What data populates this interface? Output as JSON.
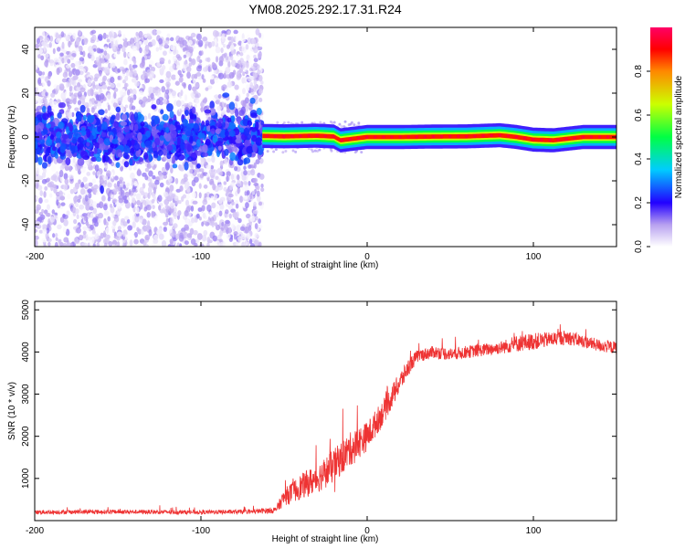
{
  "title": "YM08.2025.292.17.31.R24",
  "chart_data": [
    {
      "type": "heatmap",
      "title": "YM08.2025.292.17.31.R24",
      "xlabel": "Height of straight line (km)",
      "ylabel": "Frequency (Hz)",
      "xlim": [
        -200,
        150
      ],
      "ylim": [
        -50,
        50
      ],
      "x_ticks": [
        -200,
        -100,
        0,
        100
      ],
      "y_ticks": [
        -40,
        -20,
        0,
        20,
        40
      ],
      "x_tick_labels": [
        "-200",
        "-100",
        "0",
        "100"
      ],
      "y_tick_labels": [
        "-40",
        "-20",
        "0",
        "20",
        "40"
      ],
      "colorbar": {
        "label": "Normalized spectral amplitude",
        "range": [
          0,
          1
        ],
        "ticks": [
          0,
          0.2,
          0.4,
          0.6,
          0.8
        ],
        "tick_labels": [
          "0.0",
          "0.2",
          "0.4",
          "0.6",
          "0.8"
        ],
        "colormap": "rainbow"
      },
      "regions": [
        {
          "name": "noise",
          "x_range": [
            -200,
            -63
          ],
          "frequency_spread": [
            -50,
            48
          ],
          "amplitude": [
            0,
            0.3
          ]
        },
        {
          "name": "signal",
          "x_range": [
            -63,
            150
          ],
          "center_frequency": 0,
          "bandwidth": [
            -3,
            3
          ],
          "amplitude": [
            0.6,
            1.0
          ]
        }
      ],
      "signal_band_centers": {
        "x": [
          -63,
          -50,
          -30,
          -20,
          -16,
          0,
          20,
          40,
          60,
          80,
          90,
          100,
          112,
          130,
          150
        ],
        "freq": [
          0.5,
          0.3,
          0.6,
          0.2,
          -1.5,
          0,
          0,
          0.2,
          0.3,
          0.8,
          0,
          -1.2,
          -1.5,
          0,
          0
        ]
      }
    },
    {
      "type": "line",
      "xlabel": "Height of straight line (km)",
      "ylabel": "SNR (10 * v/v)",
      "xlim": [
        -200,
        150
      ],
      "ylim": [
        0,
        5200
      ],
      "x_ticks": [
        -200,
        -100,
        0,
        100
      ],
      "y_ticks": [
        1000,
        2000,
        3000,
        4000,
        5000
      ],
      "x_tick_labels": [
        "-200",
        "-100",
        "0",
        "100"
      ],
      "y_tick_labels": [
        "1000",
        "2000",
        "3000",
        "4000",
        "5000"
      ],
      "series": [
        {
          "name": "SNR",
          "color": "#ee3333",
          "x": [
            -200,
            -150,
            -100,
            -70,
            -55,
            -50,
            -40,
            -30,
            -20,
            -10,
            0,
            10,
            20,
            25,
            30,
            40,
            50,
            60,
            70,
            80,
            90,
            100,
            110,
            120,
            130,
            140,
            150
          ],
          "y": [
            200,
            210,
            200,
            210,
            250,
            550,
            800,
            1000,
            1300,
            1700,
            2000,
            2600,
            3300,
            3650,
            3900,
            4000,
            3950,
            4000,
            4050,
            4100,
            4200,
            4250,
            4300,
            4350,
            4250,
            4150,
            4100
          ],
          "noise_amplitude": [
            100,
            100,
            100,
            100,
            150,
            400,
            600,
            700,
            800,
            800,
            700,
            600,
            500,
            400,
            300,
            300,
            300,
            300,
            300,
            300,
            400,
            400,
            350,
            350,
            300,
            300,
            300
          ]
        }
      ]
    }
  ]
}
